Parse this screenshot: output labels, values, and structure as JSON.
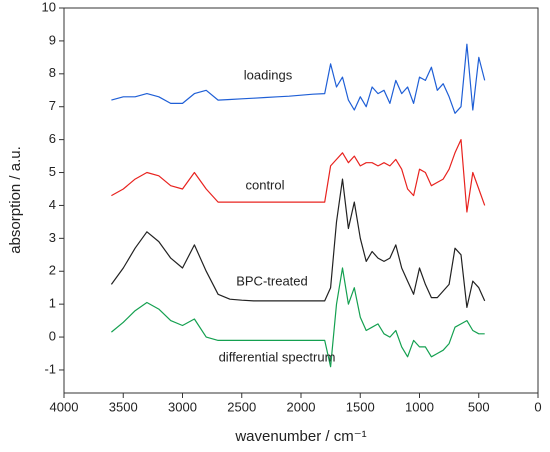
{
  "chart_data": {
    "type": "line",
    "xlabel": "wavenumber / cm⁻¹",
    "ylabel": "absorption / a.u.",
    "x": [
      3600,
      3500,
      3400,
      3300,
      3200,
      3100,
      3000,
      2900,
      2800,
      2700,
      2600,
      2500,
      2400,
      2300,
      2200,
      2100,
      2000,
      1900,
      1800,
      1750,
      1700,
      1650,
      1600,
      1550,
      1500,
      1450,
      1400,
      1350,
      1300,
      1250,
      1200,
      1150,
      1100,
      1050,
      1000,
      950,
      900,
      850,
      800,
      750,
      700,
      650,
      600,
      550,
      500,
      450
    ],
    "series": [
      {
        "name": "loadings",
        "color": "#1f5fd6",
        "values": [
          7.2,
          7.3,
          7.3,
          7.4,
          7.3,
          7.1,
          7.1,
          7.4,
          7.5,
          7.2,
          7.22,
          7.24,
          7.26,
          7.28,
          7.3,
          7.32,
          7.35,
          7.38,
          7.4,
          8.3,
          7.6,
          7.9,
          7.2,
          6.9,
          7.3,
          7.0,
          7.6,
          7.4,
          7.5,
          7.1,
          7.8,
          7.4,
          7.6,
          7.1,
          7.9,
          7.8,
          8.2,
          7.5,
          7.7,
          7.3,
          6.8,
          7.0,
          8.9,
          6.9,
          8.5,
          7.8
        ]
      },
      {
        "name": "control",
        "color": "#e8231f",
        "values": [
          4.3,
          4.5,
          4.8,
          5.0,
          4.9,
          4.6,
          4.5,
          5.0,
          4.5,
          4.1,
          4.1,
          4.1,
          4.1,
          4.1,
          4.1,
          4.1,
          4.1,
          4.1,
          4.1,
          5.2,
          5.4,
          5.6,
          5.3,
          5.5,
          5.2,
          5.3,
          5.3,
          5.2,
          5.3,
          5.2,
          5.4,
          5.1,
          4.5,
          4.3,
          5.1,
          5.0,
          4.6,
          4.7,
          4.8,
          5.1,
          5.6,
          6.0,
          3.8,
          5.0,
          4.5,
          4.0
        ]
      },
      {
        "name": "BPC-treated",
        "color": "#222222",
        "values": [
          1.6,
          2.1,
          2.7,
          3.2,
          2.9,
          2.4,
          2.1,
          2.8,
          2.0,
          1.3,
          1.15,
          1.12,
          1.1,
          1.1,
          1.1,
          1.1,
          1.1,
          1.1,
          1.1,
          1.5,
          3.5,
          4.8,
          3.3,
          4.1,
          3.0,
          2.3,
          2.6,
          2.4,
          2.3,
          2.4,
          2.8,
          2.1,
          1.7,
          1.3,
          2.1,
          1.6,
          1.2,
          1.2,
          1.4,
          1.6,
          2.7,
          2.5,
          0.9,
          1.7,
          1.5,
          1.1
        ]
      },
      {
        "name": "differential spectrum",
        "color": "#14a050",
        "values": [
          0.15,
          0.45,
          0.8,
          1.05,
          0.85,
          0.5,
          0.35,
          0.55,
          0.0,
          -0.1,
          -0.1,
          -0.1,
          -0.1,
          -0.1,
          -0.1,
          -0.1,
          -0.1,
          -0.1,
          -0.1,
          -0.9,
          1.0,
          2.1,
          1.0,
          1.5,
          0.6,
          0.2,
          0.3,
          0.4,
          0.1,
          0.0,
          0.2,
          -0.3,
          -0.6,
          -0.1,
          -0.3,
          -0.3,
          -0.6,
          -0.5,
          -0.4,
          -0.2,
          0.3,
          0.4,
          0.5,
          0.2,
          0.1,
          0.1
        ]
      }
    ],
    "xlim": [
      4000,
      0
    ],
    "xticks": [
      4000,
      3500,
      3000,
      2500,
      2000,
      1500,
      1000,
      500,
      0
    ],
    "ylim": [
      -1.7,
      10
    ],
    "yticks": [
      -1,
      0,
      1,
      2,
      3,
      4,
      5,
      6,
      7,
      8,
      9,
      10
    ]
  }
}
